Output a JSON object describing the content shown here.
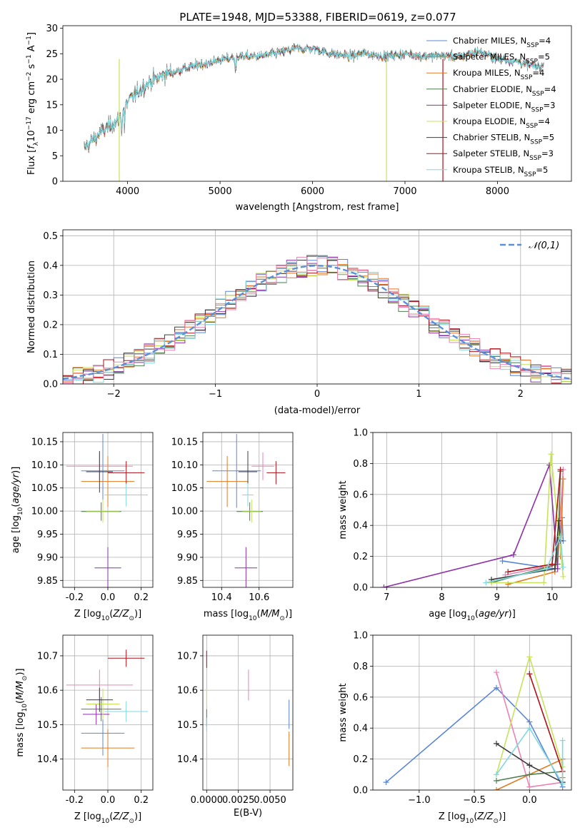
{
  "figure_title": "PLATE=1948, MJD=53388, FIBERID=0619, z=0.077",
  "models": [
    {
      "name": "Chabrier MILES",
      "n": "4",
      "color": "#5b86d8"
    },
    {
      "name": "Salpeter MILES",
      "n": "5",
      "color": "#e8722e"
    },
    {
      "name": "Kroupa MILES",
      "n": "4",
      "color": "#e07b22"
    },
    {
      "name": "Chabrier ELODIE",
      "n": "4",
      "color": "#4f7f4f"
    },
    {
      "name": "Salpeter ELODIE",
      "n": "3",
      "color": "#8e2ea8"
    },
    {
      "name": "Kroupa ELODIE",
      "n": "4",
      "color": "#c6e35a"
    },
    {
      "name": "Chabrier STELIB",
      "n": "5",
      "color": "#3c3c3c"
    },
    {
      "name": "Salpeter STELIB",
      "n": "3",
      "color": "#b01018"
    },
    {
      "name": "Kroupa STELIB",
      "n": "5",
      "color": "#7fd8de"
    }
  ],
  "legend_nssp_prefix": "N",
  "legend_nssp_sub": "SSP",
  "colors": {
    "axes": "#000000",
    "grid": "#b0b0b0",
    "gauss": "#5b8fd6",
    "spectrum_grey": "#777777",
    "pink": "#ec82b6",
    "cyan_cross": "#7fd8de"
  },
  "chart_data": [
    {
      "id": "spectrum",
      "type": "line",
      "xlabel": "wavelength [Angstrom, rest frame]",
      "ylabel": "Flux [f_λ 10^-17 erg cm^-2 s^-1 A^-1]",
      "xlim": [
        3300,
        8800
      ],
      "ylim": [
        0,
        30.5
      ],
      "xticks": [
        4000,
        5000,
        6000,
        7000,
        8000
      ],
      "yticks": [
        0,
        5,
        10,
        15,
        20,
        25,
        30
      ],
      "grid": false,
      "legend": "right",
      "continuum_x": [
        3530,
        3700,
        3900,
        4000,
        4200,
        4400,
        4600,
        4800,
        5000,
        5200,
        5400,
        5600,
        5800,
        6000,
        6200,
        6400,
        6600,
        6800,
        7000,
        7200,
        7400,
        7600,
        7800,
        8000,
        8200,
        8400
      ],
      "continuum_y": [
        6.5,
        9.5,
        12.0,
        15.5,
        19.0,
        21.0,
        22.0,
        23.0,
        23.8,
        24.5,
        24.5,
        25.0,
        26.0,
        26.0,
        25.0,
        24.5,
        25.0,
        24.5,
        25.0,
        24.5,
        24.5,
        24.5,
        25.5,
        24.0,
        23.5,
        22.5
      ],
      "dropouts": [
        {
          "x": 3910,
          "color": "#c6e35a"
        },
        {
          "x": 6800,
          "color": "#c6e35a"
        },
        {
          "x": 7410,
          "color": "#b01018"
        }
      ]
    },
    {
      "id": "residuals",
      "type": "histogram",
      "xlabel": "(data-model)/error",
      "ylabel": "Normed distribution",
      "xlim": [
        -2.5,
        2.5
      ],
      "ylim": [
        0,
        0.52
      ],
      "xticks": [
        -2,
        -1,
        0,
        1,
        2
      ],
      "yticks": [
        0.0,
        0.1,
        0.2,
        0.3,
        0.4,
        0.5
      ],
      "grid": true,
      "legend": "top-right",
      "gauss_label": "𝒩(0,1)",
      "bin_width": 0.1
    },
    {
      "id": "age_vs_Z",
      "type": "scatter",
      "xlabel": "Z [log10(Z/Z⊙)]",
      "ylabel": "age [log10(age/yr)]",
      "xlim": [
        -0.27,
        0.27
      ],
      "ylim": [
        9.835,
        10.17
      ],
      "xticks": [
        -0.2,
        0.0,
        0.2
      ],
      "yticks": [
        9.85,
        9.9,
        9.95,
        10.0,
        10.05,
        10.1,
        10.15
      ],
      "points": [
        {
          "c": "#5b86d8",
          "x": -0.03,
          "xe": 0.13,
          "y": 10.087,
          "ye": 0.16
        },
        {
          "c": "#e07b22",
          "x": 0.0,
          "xe": 0.16,
          "y": 10.064,
          "ye": 0.11
        },
        {
          "c": "#ec82b6",
          "x": -0.05,
          "xe": 0.2,
          "y": 10.097,
          "ye": 0.06
        },
        {
          "c": "#4f7f4f",
          "x": -0.04,
          "xe": 0.12,
          "y": 9.999,
          "ye": 0.04
        },
        {
          "c": "#8e2ea8",
          "x": 0.0,
          "xe": 0.08,
          "y": 9.877,
          "ye": 0.09
        },
        {
          "c": "#c6e35a",
          "x": -0.03,
          "xe": 0.1,
          "y": 10.0,
          "ye": 0.05
        },
        {
          "c": "#3c3c3c",
          "x": -0.05,
          "xe": 0.08,
          "y": 10.085,
          "ye": 0.09
        },
        {
          "c": "#b01018",
          "x": 0.11,
          "xe": 0.11,
          "y": 10.083,
          "ye": 0.05
        },
        {
          "c": "#7fd8de",
          "x": 0.11,
          "xe": 0.13,
          "y": 10.035,
          "ye": 0.05
        }
      ]
    },
    {
      "id": "age_vs_mass",
      "type": "scatter",
      "xlabel": "mass [log10(M/M⊙)]",
      "ylabel": "",
      "xlim": [
        10.3,
        10.78
      ],
      "ylim": [
        9.835,
        10.17
      ],
      "xticks": [
        10.4,
        10.6
      ],
      "yticks": [
        9.85,
        9.9,
        9.95,
        10.0,
        10.05,
        10.1,
        10.15
      ],
      "points": [
        {
          "c": "#5b86d8",
          "x": 10.48,
          "xe": 0.13,
          "y": 10.087,
          "ye": 0.16
        },
        {
          "c": "#e07b22",
          "x": 10.43,
          "xe": 0.11,
          "y": 10.064,
          "ye": 0.11
        },
        {
          "c": "#ec82b6",
          "x": 10.62,
          "xe": 0.06,
          "y": 10.097,
          "ye": 0.06
        },
        {
          "c": "#4f7f4f",
          "x": 10.55,
          "xe": 0.07,
          "y": 9.999,
          "ye": 0.04
        },
        {
          "c": "#8e2ea8",
          "x": 10.53,
          "xe": 0.06,
          "y": 9.877,
          "ye": 0.09
        },
        {
          "c": "#c6e35a",
          "x": 10.56,
          "xe": 0.05,
          "y": 10.0,
          "ye": 0.05
        },
        {
          "c": "#3c3c3c",
          "x": 10.54,
          "xe": 0.05,
          "y": 10.085,
          "ye": 0.09
        },
        {
          "c": "#b01018",
          "x": 10.69,
          "xe": 0.05,
          "y": 10.083,
          "ye": 0.05
        },
        {
          "c": "#7fd8de",
          "x": 10.54,
          "xe": 0.03,
          "y": 10.035,
          "ye": 0.05
        }
      ]
    },
    {
      "id": "weight_vs_age",
      "type": "line",
      "xlabel": "age [log10(age/yr)]",
      "ylabel": "mass weight",
      "xlim": [
        6.75,
        10.35
      ],
      "ylim": [
        0,
        1.0
      ],
      "xticks": [
        7,
        8,
        9,
        10
      ],
      "yticks": [
        0.0,
        0.2,
        0.4,
        0.6,
        0.8,
        1.0
      ],
      "grid": true,
      "series": [
        {
          "c": "#5b86d8",
          "pts": [
            [
              9.1,
              0.17
            ],
            [
              10.05,
              0.12
            ],
            [
              10.18,
              0.45
            ],
            [
              10.2,
              0.3
            ]
          ]
        },
        {
          "c": "#e07b22",
          "pts": [
            [
              9.2,
              0.02
            ],
            [
              10.05,
              0.1
            ],
            [
              10.2,
              0.7
            ],
            [
              10.15,
              0.2
            ]
          ]
        },
        {
          "c": "#ec82b6",
          "pts": [
            [
              9.15,
              0.08
            ],
            [
              10.1,
              0.15
            ],
            [
              10.2,
              0.76
            ]
          ]
        },
        {
          "c": "#4f7f4f",
          "pts": [
            [
              8.9,
              0.03
            ],
            [
              10.1,
              0.15
            ],
            [
              10.15,
              0.75
            ]
          ]
        },
        {
          "c": "#8e2ea8",
          "pts": [
            [
              6.95,
              0.0
            ],
            [
              9.3,
              0.21
            ],
            [
              9.95,
              0.79
            ],
            [
              10.1,
              0.12
            ]
          ]
        },
        {
          "c": "#c6e35a",
          "pts": [
            [
              8.9,
              0.03
            ],
            [
              9.85,
              0.03
            ],
            [
              9.98,
              0.86
            ],
            [
              10.2,
              0.07
            ]
          ]
        },
        {
          "c": "#3c3c3c",
          "pts": [
            [
              8.9,
              0.05
            ],
            [
              10.05,
              0.12
            ],
            [
              10.12,
              0.43
            ],
            [
              10.15,
              0.3
            ]
          ]
        },
        {
          "c": "#b01018",
          "pts": [
            [
              9.2,
              0.1
            ],
            [
              10.0,
              0.15
            ],
            [
              10.15,
              0.76
            ]
          ]
        },
        {
          "c": "#7fd8de",
          "pts": [
            [
              8.8,
              0.03
            ],
            [
              9.9,
              0.12
            ],
            [
              10.15,
              0.33
            ],
            [
              10.2,
              0.13
            ]
          ]
        }
      ]
    },
    {
      "id": "mass_vs_Z",
      "type": "scatter",
      "xlabel": "Z [log10(Z/Z⊙)]",
      "ylabel": "mass [log10(M/M⊙)]",
      "xlim": [
        -0.27,
        0.27
      ],
      "ylim": [
        10.31,
        10.76
      ],
      "xticks": [
        -0.2,
        0.0,
        0.2
      ],
      "yticks": [
        10.4,
        10.5,
        10.6,
        10.7
      ],
      "points": [
        {
          "c": "#5b86d8",
          "x": -0.03,
          "xe": 0.13,
          "y": 10.475,
          "ye": 0.13
        },
        {
          "c": "#e07b22",
          "x": 0.0,
          "xe": 0.16,
          "y": 10.432,
          "ye": 0.11
        },
        {
          "c": "#ec82b6",
          "x": -0.05,
          "xe": 0.2,
          "y": 10.615,
          "ye": 0.09
        },
        {
          "c": "#4f7f4f",
          "x": -0.04,
          "xe": 0.12,
          "y": 10.545,
          "ye": 0.07
        },
        {
          "c": "#8e2ea8",
          "x": -0.07,
          "xe": 0.08,
          "y": 10.53,
          "ye": 0.06
        },
        {
          "c": "#c6e35a",
          "x": -0.03,
          "xe": 0.1,
          "y": 10.56,
          "ye": 0.09
        },
        {
          "c": "#3c3c3c",
          "x": -0.05,
          "xe": 0.08,
          "y": 10.572,
          "ye": 0.07
        },
        {
          "c": "#b01018",
          "x": 0.11,
          "xe": 0.11,
          "y": 10.693,
          "ye": 0.05
        },
        {
          "c": "#7fd8de",
          "x": 0.11,
          "xe": 0.13,
          "y": 10.538,
          "ye": 0.06
        }
      ]
    },
    {
      "id": "mass_vs_EBV",
      "type": "scatter",
      "xlabel": "E(B-V)",
      "ylabel": "",
      "xlim": [
        -0.0003,
        0.0068
      ],
      "ylim": [
        10.31,
        10.76
      ],
      "xticks": [
        0.0,
        0.0025,
        0.005
      ],
      "xtick_labels": [
        "0.0000",
        "0.0025",
        "0.0050"
      ],
      "yticks": [
        10.4,
        10.5,
        10.6,
        10.7
      ],
      "points": [
        {
          "c": "#5b86d8",
          "x": 0.0065,
          "y": 10.53,
          "ye": 0.085
        },
        {
          "c": "#e07b22",
          "x": 0.0065,
          "y": 10.43,
          "ye": 0.1
        },
        {
          "c": "#ec82b6",
          "x": 0.0033,
          "y": 10.615,
          "ye": 0.09
        },
        {
          "c": "#4f7f4f",
          "x": 0.0,
          "y": 10.52,
          "ye": 0.05
        },
        {
          "c": "#c6e35a",
          "x": 0.0,
          "y": 10.58,
          "ye": 0.05
        },
        {
          "c": "#b01018",
          "x": 0.0,
          "y": 10.69,
          "ye": 0.05
        },
        {
          "c": "#7fd8de",
          "x": 0.0,
          "y": 10.5,
          "ye": 0.04
        }
      ]
    },
    {
      "id": "weight_vs_Z",
      "type": "line",
      "xlabel": "Z [log10(Z/Z⊙)]",
      "ylabel": "mass weight",
      "xlim": [
        -1.42,
        0.38
      ],
      "ylim": [
        0,
        1.0
      ],
      "xticks": [
        -1.0,
        -0.5,
        0.0
      ],
      "yticks": [
        0.0,
        0.2,
        0.4,
        0.6,
        0.8,
        1.0
      ],
      "grid": true,
      "series": [
        {
          "c": "#5b86d8",
          "pts": [
            [
              -1.3,
              0.05
            ],
            [
              -0.3,
              0.66
            ],
            [
              0.0,
              0.44
            ],
            [
              0.3,
              0.02
            ]
          ]
        },
        {
          "c": "#e07b22",
          "pts": [
            [
              -0.3,
              0.0
            ],
            [
              0.3,
              0.2
            ],
            [
              0.3,
              0.08
            ]
          ]
        },
        {
          "c": "#ec82b6",
          "pts": [
            [
              -0.3,
              0.76
            ],
            [
              0.0,
              0.02
            ],
            [
              0.3,
              0.05
            ]
          ]
        },
        {
          "c": "#4f7f4f",
          "pts": [
            [
              -0.3,
              0.06
            ],
            [
              0.0,
              0.1
            ],
            [
              0.3,
              0.12
            ]
          ]
        },
        {
          "c": "#c6e35a",
          "pts": [
            [
              -0.3,
              0.1
            ],
            [
              0.0,
              0.86
            ],
            [
              0.3,
              0.15
            ]
          ]
        },
        {
          "c": "#3c3c3c",
          "pts": [
            [
              -0.3,
              0.3
            ],
            [
              0.0,
              0.16
            ],
            [
              0.3,
              0.05
            ]
          ]
        },
        {
          "c": "#b01018",
          "pts": [
            [
              0.0,
              0.75
            ],
            [
              0.3,
              0.12
            ]
          ]
        },
        {
          "c": "#7fd8de",
          "pts": [
            [
              -0.3,
              0.1
            ],
            [
              0.0,
              0.4
            ],
            [
              0.3,
              0.04
            ],
            [
              0.3,
              0.32
            ]
          ]
        }
      ]
    }
  ]
}
